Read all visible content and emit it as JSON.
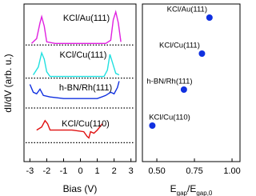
{
  "chart_data": [
    {
      "type": "line",
      "xlabel": "Bias (V)",
      "ylabel": "dI/dV (arb. u.)",
      "xlim": [
        -3.35,
        3.3
      ],
      "ylim": [
        0,
        10
      ],
      "xticks": [
        -3,
        -2,
        -1,
        0,
        1,
        2,
        3
      ],
      "series": [
        {
          "name": "KCl/Au(111)",
          "color": "#e020e0",
          "baseline": 7.4,
          "x": [
            -2.9,
            -2.6,
            -2.4,
            -2.3,
            -2.15,
            -2.0,
            -1.5,
            0,
            1.5,
            1.8,
            1.95,
            2.1,
            2.25,
            2.4
          ],
          "values": [
            7.5,
            7.8,
            8.8,
            9.2,
            8.6,
            7.6,
            7.5,
            7.5,
            7.5,
            7.7,
            9.0,
            9.5,
            8.8,
            7.6
          ]
        },
        {
          "name": "KCl/Cu(111)",
          "color": "#20e0e0",
          "baseline": 5.3,
          "x": [
            -2.8,
            -2.5,
            -2.3,
            -2.15,
            -2.0,
            -1.8,
            0,
            1.4,
            1.6,
            1.75,
            1.9,
            2.1,
            2.3
          ],
          "values": [
            5.5,
            6.0,
            6.9,
            6.5,
            5.7,
            5.4,
            5.4,
            5.4,
            5.8,
            6.8,
            6.3,
            5.6,
            5.5
          ]
        },
        {
          "name": "h-BN/Rh(111)",
          "color": "#1030e0",
          "baseline": 3.4,
          "x": [
            -3.0,
            -2.8,
            -2.6,
            -2.4,
            -2.2,
            -1.8,
            -1,
            0,
            1,
            1.5,
            1.8,
            2.0,
            2.2,
            2.3
          ],
          "values": [
            4.9,
            4.4,
            4.3,
            4.6,
            4.2,
            4.1,
            4.0,
            4.0,
            4.0,
            4.2,
            4.4,
            4.3,
            4.7,
            5.1
          ]
        },
        {
          "name": "KCl/Cu(110)",
          "color": "#e01010",
          "baseline": 1.2,
          "x": [
            -2.6,
            -2.3,
            -2.1,
            -1.95,
            -1.8,
            -1.5,
            -0.5,
            0.2,
            0.4,
            0.5,
            0.6,
            0.8,
            1.0,
            1.3
          ],
          "values": [
            2.0,
            2.2,
            2.6,
            2.4,
            2.0,
            2.0,
            2.0,
            1.9,
            1.6,
            1.5,
            1.9,
            1.8,
            2.0,
            2.4
          ]
        }
      ]
    },
    {
      "type": "scatter",
      "xlabel": [
        "E",
        "gap",
        "/E",
        "gap,0"
      ],
      "xlim": [
        0.404,
        1.053
      ],
      "xticks": [
        {
          "value": 0.5,
          "label": "0.50"
        },
        0.75,
        {
          "value": 1,
          "label": "1.00"
        }
      ],
      "color": "#1030e0",
      "categories": [
        "KCl/Au(111)",
        "KCl/Cu(111)",
        "h-BN/Rh(111)",
        "KCl/Cu(110)"
      ],
      "values": [
        0.85,
        0.8,
        0.68,
        0.47
      ]
    }
  ]
}
